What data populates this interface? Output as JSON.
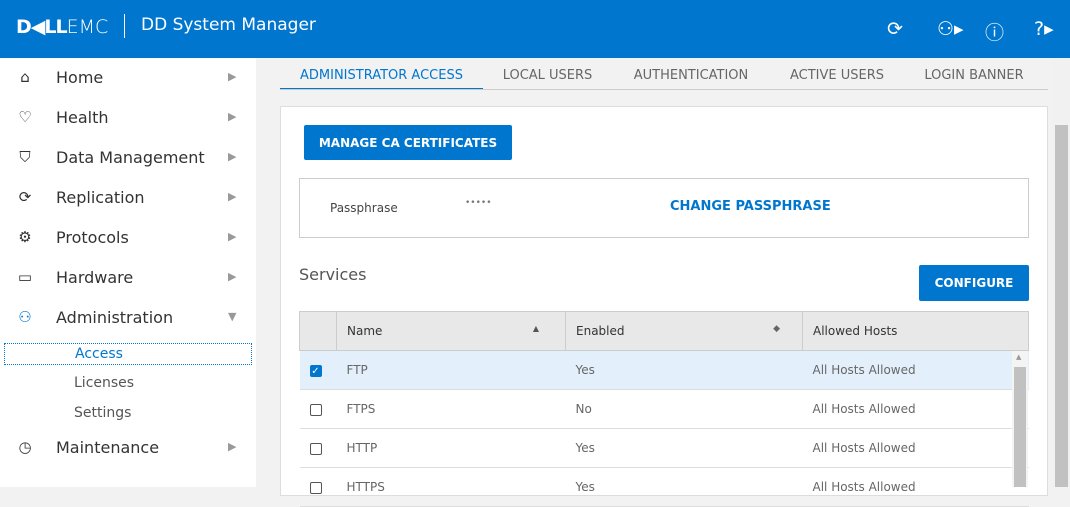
{
  "header": {
    "logo": "DELLEMC",
    "logo_bold": "D◀LL",
    "logo_light": "EMC",
    "title": "DD System Manager",
    "icons": [
      "refresh-icon",
      "user-icon",
      "info-icon",
      "help-icon"
    ]
  },
  "sidebar": {
    "items": [
      {
        "label": "Home",
        "icon": "⌂"
      },
      {
        "label": "Health",
        "icon": "♡"
      },
      {
        "label": "Data Management",
        "icon": "⛉"
      },
      {
        "label": "Replication",
        "icon": "⟳"
      },
      {
        "label": "Protocols",
        "icon": "⚙"
      },
      {
        "label": "Hardware",
        "icon": "▭"
      },
      {
        "label": "Administration",
        "icon": "⚇"
      },
      {
        "label": "Maintenance",
        "icon": "◷"
      }
    ],
    "subitems": [
      "Access",
      "Licenses",
      "Settings"
    ]
  },
  "tabs": [
    "ADMINISTRATOR ACCESS",
    "LOCAL USERS",
    "AUTHENTICATION",
    "ACTIVE USERS",
    "LOGIN BANNER"
  ],
  "main": {
    "manage_ca": "MANAGE CA CERTIFICATES",
    "passphrase_label": "Passphrase",
    "passphrase_value": "•••••",
    "change_passphrase": "CHANGE PASSPHRASE",
    "services_title": "Services",
    "configure": "CONFIGURE"
  },
  "table": {
    "headers": [
      "Name",
      "Enabled",
      "Allowed Hosts"
    ],
    "rows": [
      {
        "name": "FTP",
        "enabled": "Yes",
        "hosts": "All Hosts Allowed",
        "checked": true
      },
      {
        "name": "FTPS",
        "enabled": "No",
        "hosts": "All Hosts Allowed",
        "checked": false
      },
      {
        "name": "HTTP",
        "enabled": "Yes",
        "hosts": "All Hosts Allowed",
        "checked": false
      },
      {
        "name": "HTTPS",
        "enabled": "Yes",
        "hosts": "All Hosts Allowed",
        "checked": false
      }
    ]
  },
  "colors": {
    "brand": "#0076ce"
  }
}
